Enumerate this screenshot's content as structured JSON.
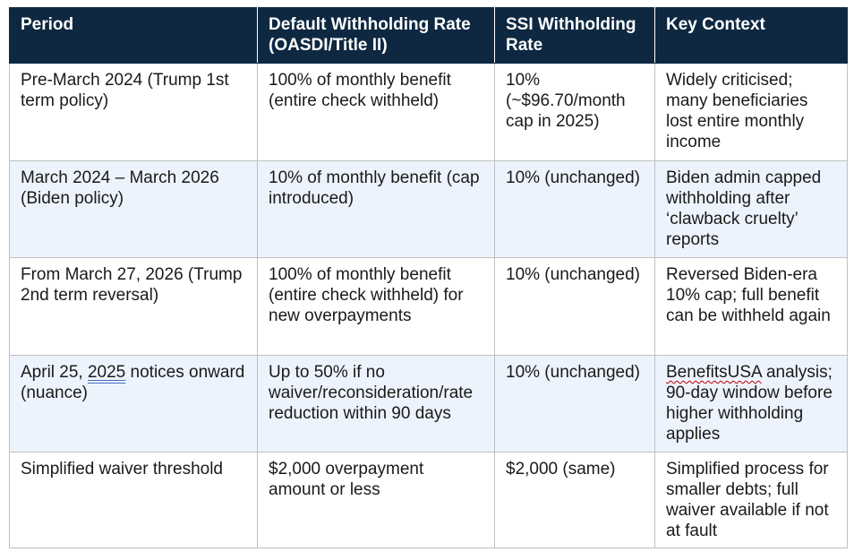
{
  "headers": [
    "Period",
    "Default Withholding Rate (OASDI/Title II)",
    "SSI Withholding Rate",
    "Key Context"
  ],
  "rows": [
    {
      "period": "Pre-March 2024 (Trump 1st term policy)",
      "default_rate": "100% of monthly benefit (entire check withheld)",
      "ssi_rate": "10% (~$96.70/month cap in 2025)",
      "context": "Widely criticised; many beneficiaries lost entire monthly income"
    },
    {
      "period": "March 2024 – March 2026 (Biden policy)",
      "default_rate": "10% of monthly benefit (cap introduced)",
      "ssi_rate": "10% (unchanged)",
      "context": "Biden admin capped withholding after ‘clawback cruelty’ reports"
    },
    {
      "period": "From March 27, 2026 (Trump 2nd term reversal)",
      "default_rate": "100% of monthly benefit (entire check withheld) for new overpayments",
      "ssi_rate": "10% (unchanged)",
      "context": "Reversed Biden-era 10% cap; full benefit can be withheld again"
    },
    {
      "period_prefix": "April 25, ",
      "period_year": "2025",
      "period_suffix": " notices onward (nuance)",
      "default_rate": "Up to 50% if no waiver/reconsideration/rate reduction within 90 days",
      "ssi_rate": "10% (unchanged)",
      "context_name": "BenefitsUSA",
      "context_rest": " analysis; 90-day window before higher withholding applies"
    },
    {
      "period": "Simplified waiver threshold",
      "default_rate": "$2,000 overpayment amount or less",
      "ssi_rate": "$2,000 (same)",
      "context": "Simplified process for smaller debts; full waiver available if not at fault"
    }
  ],
  "colors": {
    "header_bg": "#0e2841",
    "header_text": "#ffffff",
    "alt_row_bg": "#edf3fd",
    "border": "#bfbfbf",
    "spellcheck_underline": "#c00000",
    "grammar_underline": "#4472c4"
  }
}
